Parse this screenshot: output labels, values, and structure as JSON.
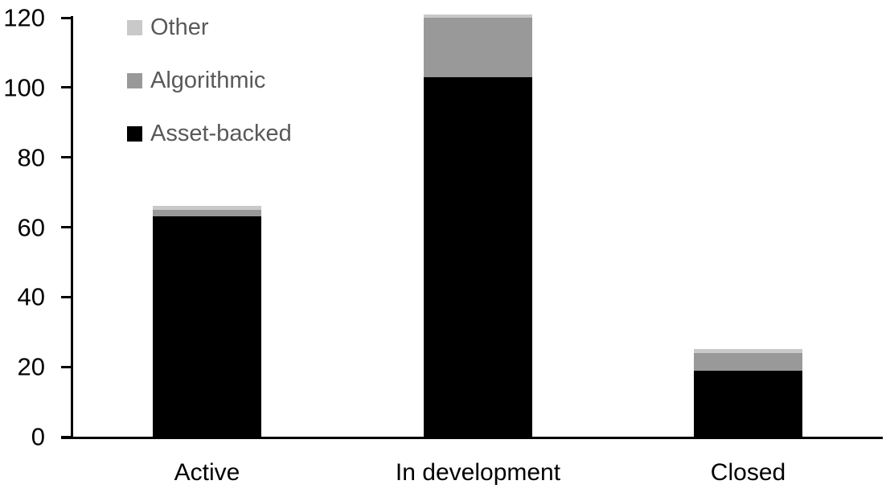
{
  "chart_data": {
    "type": "bar",
    "stacked": true,
    "title": "",
    "xlabel": "",
    "ylabel": "",
    "categories": [
      "Active",
      "In development",
      "Closed"
    ],
    "series": [
      {
        "name": "Asset-backed",
        "color": "#000000",
        "values": [
          63,
          103,
          19
        ]
      },
      {
        "name": "Algorithmic",
        "color": "#999999",
        "values": [
          2,
          17,
          5
        ]
      },
      {
        "name": "Other",
        "color": "#c9c9c9",
        "values": [
          1,
          1,
          1
        ]
      }
    ],
    "totals": [
      66,
      121,
      25
    ],
    "ylim": [
      0,
      120
    ],
    "yticks": [
      0,
      20,
      40,
      60,
      80,
      100,
      120
    ],
    "grid": false,
    "legend": {
      "position": "top-left",
      "items": [
        "Other",
        "Algorithmic",
        "Asset-backed"
      ]
    },
    "colors": {
      "axis": "#000000",
      "tick_label_text": "#000000",
      "category_label_text": "#000000",
      "legend_text": "#595959",
      "background": "#ffffff"
    }
  }
}
